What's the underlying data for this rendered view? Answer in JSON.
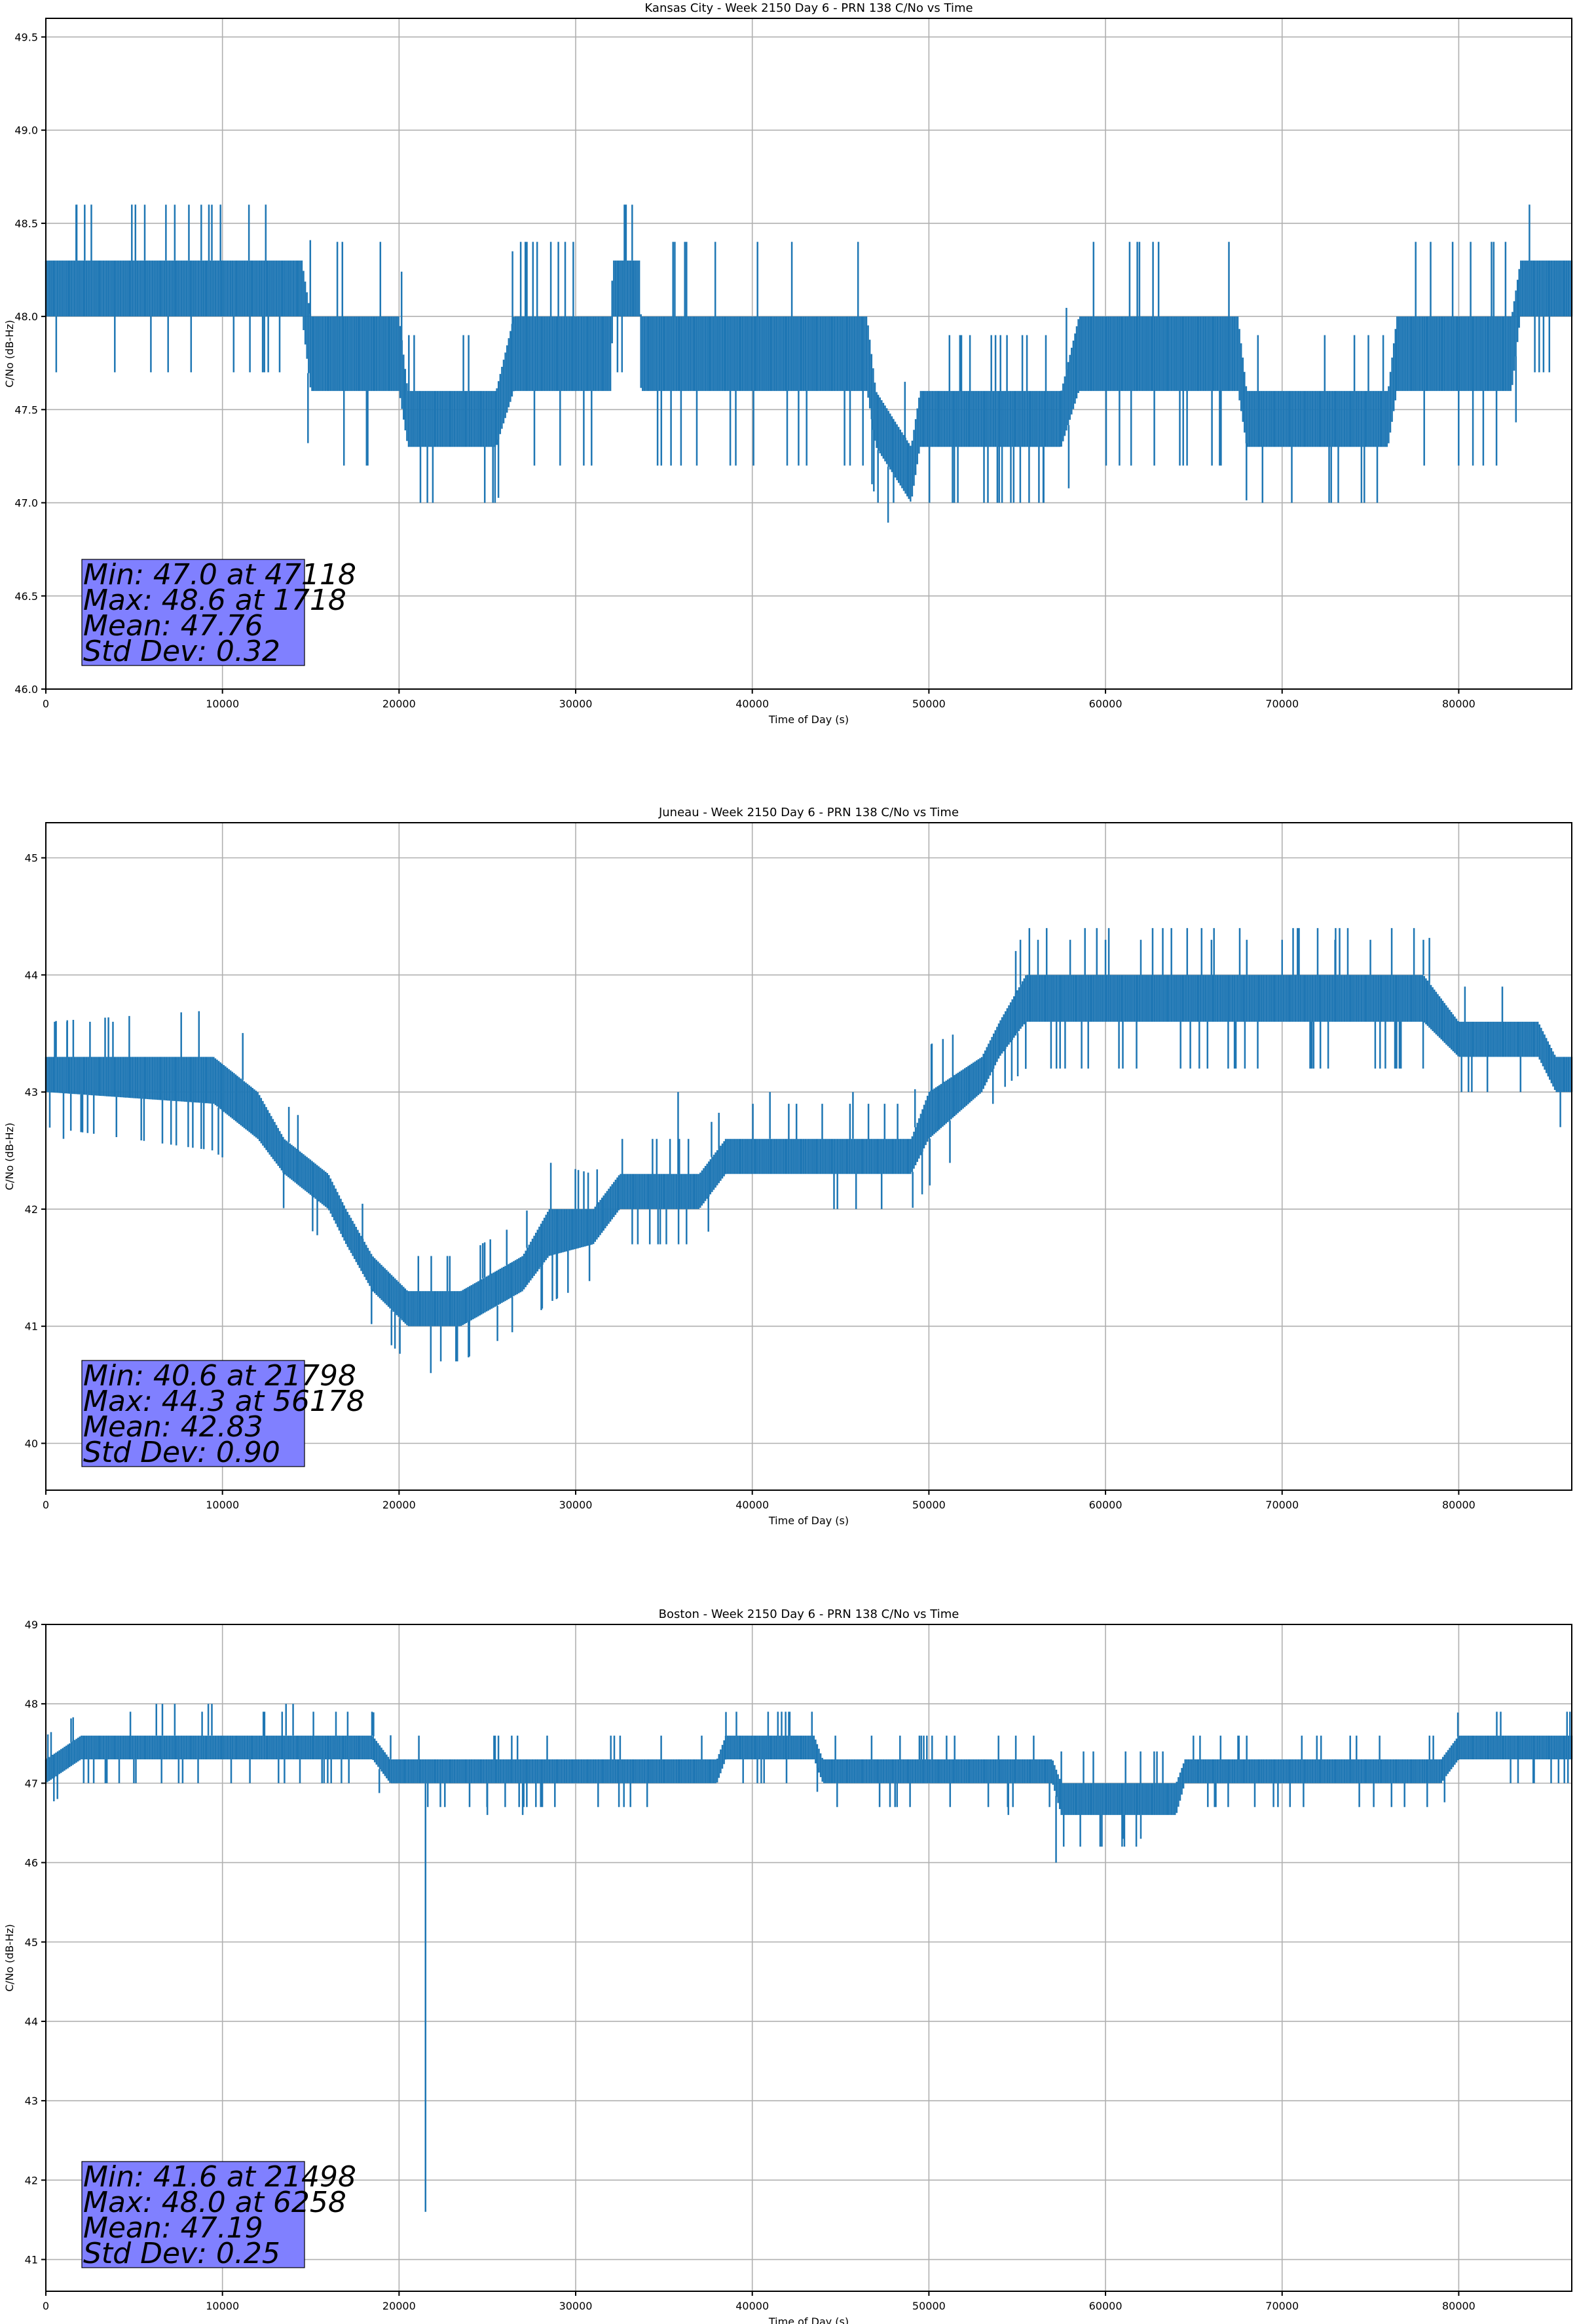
{
  "chart_data": [
    {
      "type": "line",
      "title": "Kansas City - Week 2150 Day 6 - PRN 138 C/No vs Time",
      "xlabel": "Time of Day (s)",
      "ylabel": "C/No (dB-Hz)",
      "xlim": [
        0,
        86400
      ],
      "ylim": [
        46.0,
        49.6
      ],
      "xticks": [
        0,
        10000,
        20000,
        30000,
        40000,
        50000,
        60000,
        70000,
        80000
      ],
      "yticks": [
        46.0,
        46.5,
        47.0,
        47.5,
        48.0,
        48.5,
        49.0,
        49.5
      ],
      "ytick_decimals": 1,
      "grid": true,
      "series": [
        {
          "name": "C/No",
          "color": "#1f77b4",
          "band_points": [
            {
              "x": 0,
              "low": 48.0,
              "high": 48.3
            },
            {
              "x": 14500,
              "low": 48.0,
              "high": 48.3
            },
            {
              "x": 15000,
              "low": 47.6,
              "high": 48.0
            },
            {
              "x": 20000,
              "low": 47.6,
              "high": 48.0
            },
            {
              "x": 20500,
              "low": 47.3,
              "high": 47.6
            },
            {
              "x": 25500,
              "low": 47.3,
              "high": 47.6
            },
            {
              "x": 26500,
              "low": 47.6,
              "high": 48.0
            },
            {
              "x": 32000,
              "low": 47.6,
              "high": 48.0
            },
            {
              "x": 32100,
              "low": 48.0,
              "high": 48.3
            },
            {
              "x": 33600,
              "low": 48.0,
              "high": 48.3
            },
            {
              "x": 33700,
              "low": 47.6,
              "high": 48.0
            },
            {
              "x": 46500,
              "low": 47.6,
              "high": 48.0
            },
            {
              "x": 47000,
              "low": 47.3,
              "high": 47.6
            },
            {
              "x": 49000,
              "low": 47.0,
              "high": 47.3
            },
            {
              "x": 49500,
              "low": 47.3,
              "high": 47.6
            },
            {
              "x": 57500,
              "low": 47.3,
              "high": 47.6
            },
            {
              "x": 58500,
              "low": 47.6,
              "high": 48.0
            },
            {
              "x": 67500,
              "low": 47.6,
              "high": 48.0
            },
            {
              "x": 68000,
              "low": 47.3,
              "high": 47.6
            },
            {
              "x": 76000,
              "low": 47.3,
              "high": 47.6
            },
            {
              "x": 76500,
              "low": 47.6,
              "high": 48.0
            },
            {
              "x": 83000,
              "low": 47.6,
              "high": 48.0
            },
            {
              "x": 83500,
              "low": 48.0,
              "high": 48.3
            },
            {
              "x": 86400,
              "low": 48.0,
              "high": 48.3
            }
          ],
          "spikes": [
            {
              "x": 1718,
              "y": 48.6
            },
            {
              "x": 2200,
              "y": 48.6
            },
            {
              "x": 5600,
              "y": 48.6
            },
            {
              "x": 6800,
              "y": 48.6
            },
            {
              "x": 7300,
              "y": 48.6
            },
            {
              "x": 8100,
              "y": 48.6
            },
            {
              "x": 8800,
              "y": 48.6
            },
            {
              "x": 9400,
              "y": 48.6
            },
            {
              "x": 11500,
              "y": 48.6
            },
            {
              "x": 33200,
              "y": 48.6
            },
            {
              "x": 47118,
              "y": 47.0
            },
            {
              "x": 48000,
              "y": 47.0
            },
            {
              "x": 54800,
              "y": 47.0
            },
            {
              "x": 56500,
              "y": 47.0
            }
          ]
        }
      ],
      "stats": [
        "Min: 47.0 at 47118",
        "Max: 48.6 at 1718",
        "Mean: 47.76",
        "Std Dev: 0.32"
      ]
    },
    {
      "type": "line",
      "title": "Juneau - Week 2150 Day 6 - PRN 138 C/No vs Time",
      "xlabel": "Time of Day (s)",
      "ylabel": "C/No (dB-Hz)",
      "xlim": [
        0,
        86400
      ],
      "ylim": [
        39.6,
        45.3
      ],
      "xticks": [
        0,
        10000,
        20000,
        30000,
        40000,
        50000,
        60000,
        70000,
        80000
      ],
      "yticks": [
        40,
        41,
        42,
        43,
        44,
        45
      ],
      "ytick_decimals": 0,
      "grid": true,
      "series": [
        {
          "name": "C/No",
          "color": "#1f77b4",
          "band_points": [
            {
              "x": 0,
              "low": 43.0,
              "high": 43.3
            },
            {
              "x": 9500,
              "low": 42.9,
              "high": 43.3
            },
            {
              "x": 12000,
              "low": 42.6,
              "high": 43.0
            },
            {
              "x": 13500,
              "low": 42.3,
              "high": 42.6
            },
            {
              "x": 16000,
              "low": 42.0,
              "high": 42.3
            },
            {
              "x": 17000,
              "low": 41.7,
              "high": 42.0
            },
            {
              "x": 18500,
              "low": 41.3,
              "high": 41.6
            },
            {
              "x": 20500,
              "low": 41.0,
              "high": 41.3
            },
            {
              "x": 23500,
              "low": 41.0,
              "high": 41.3
            },
            {
              "x": 27000,
              "low": 41.3,
              "high": 41.6
            },
            {
              "x": 28500,
              "low": 41.6,
              "high": 42.0
            },
            {
              "x": 31000,
              "low": 41.7,
              "high": 42.0
            },
            {
              "x": 32500,
              "low": 42.0,
              "high": 42.3
            },
            {
              "x": 37000,
              "low": 42.0,
              "high": 42.3
            },
            {
              "x": 38500,
              "low": 42.3,
              "high": 42.6
            },
            {
              "x": 49000,
              "low": 42.3,
              "high": 42.6
            },
            {
              "x": 50000,
              "low": 42.6,
              "high": 43.0
            },
            {
              "x": 53000,
              "low": 43.0,
              "high": 43.3
            },
            {
              "x": 54000,
              "low": 43.3,
              "high": 43.6
            },
            {
              "x": 55500,
              "low": 43.6,
              "high": 44.0
            },
            {
              "x": 70000,
              "low": 43.6,
              "high": 44.0
            },
            {
              "x": 78000,
              "low": 43.6,
              "high": 44.0
            },
            {
              "x": 80000,
              "low": 43.3,
              "high": 43.6
            },
            {
              "x": 84500,
              "low": 43.3,
              "high": 43.6
            },
            {
              "x": 85500,
              "low": 43.0,
              "high": 43.3
            },
            {
              "x": 86400,
              "low": 43.0,
              "high": 43.3
            }
          ],
          "spikes": [
            {
              "x": 500,
              "y": 43.6
            },
            {
              "x": 1200,
              "y": 43.6
            },
            {
              "x": 2500,
              "y": 43.6
            },
            {
              "x": 3800,
              "y": 43.6
            },
            {
              "x": 1000,
              "y": 42.6
            },
            {
              "x": 21798,
              "y": 40.6
            },
            {
              "x": 35800,
              "y": 43.0
            },
            {
              "x": 41000,
              "y": 43.0
            },
            {
              "x": 45700,
              "y": 43.0
            },
            {
              "x": 56178,
              "y": 44.3
            },
            {
              "x": 58000,
              "y": 44.3
            },
            {
              "x": 60000,
              "y": 44.3
            },
            {
              "x": 62000,
              "y": 44.3
            },
            {
              "x": 66000,
              "y": 44.3
            },
            {
              "x": 68000,
              "y": 44.3
            },
            {
              "x": 70000,
              "y": 44.3
            },
            {
              "x": 73000,
              "y": 44.3
            },
            {
              "x": 75000,
              "y": 44.3
            },
            {
              "x": 78000,
              "y": 44.3
            }
          ]
        }
      ],
      "stats": [
        "Min: 40.6 at 21798",
        "Max: 44.3 at 56178",
        "Mean: 42.83",
        "Std Dev: 0.90"
      ]
    },
    {
      "type": "line",
      "title": "Boston - Week 2150 Day 6 - PRN 138 C/No vs Time",
      "xlabel": "Time of Day (s)",
      "ylabel": "C/No (dB-Hz)",
      "xlim": [
        0,
        86400
      ],
      "ylim": [
        40.6,
        49.0
      ],
      "xticks": [
        0,
        10000,
        20000,
        30000,
        40000,
        50000,
        60000,
        70000,
        80000
      ],
      "yticks": [
        41,
        42,
        43,
        44,
        45,
        46,
        47,
        48,
        49
      ],
      "ytick_decimals": 0,
      "grid": true,
      "series": [
        {
          "name": "C/No",
          "color": "#1f77b4",
          "band_points": [
            {
              "x": 0,
              "low": 47.0,
              "high": 47.3
            },
            {
              "x": 2000,
              "low": 47.3,
              "high": 47.6
            },
            {
              "x": 18500,
              "low": 47.3,
              "high": 47.6
            },
            {
              "x": 19500,
              "low": 47.0,
              "high": 47.3
            },
            {
              "x": 38000,
              "low": 47.0,
              "high": 47.3
            },
            {
              "x": 38500,
              "low": 47.3,
              "high": 47.6
            },
            {
              "x": 43500,
              "low": 47.3,
              "high": 47.6
            },
            {
              "x": 44000,
              "low": 47.0,
              "high": 47.3
            },
            {
              "x": 57000,
              "low": 47.0,
              "high": 47.3
            },
            {
              "x": 57500,
              "low": 46.6,
              "high": 47.0
            },
            {
              "x": 64000,
              "low": 46.6,
              "high": 47.0
            },
            {
              "x": 64500,
              "low": 47.0,
              "high": 47.3
            },
            {
              "x": 79000,
              "low": 47.0,
              "high": 47.3
            },
            {
              "x": 80000,
              "low": 47.3,
              "high": 47.6
            },
            {
              "x": 86400,
              "low": 47.3,
              "high": 47.6
            }
          ],
          "spikes": [
            {
              "x": 6258,
              "y": 48.0
            },
            {
              "x": 6600,
              "y": 48.0
            },
            {
              "x": 7300,
              "y": 48.0
            },
            {
              "x": 9200,
              "y": 48.0
            },
            {
              "x": 9400,
              "y": 48.0
            },
            {
              "x": 13600,
              "y": 48.0
            },
            {
              "x": 14000,
              "y": 48.0
            },
            {
              "x": 21498,
              "y": 41.6
            },
            {
              "x": 25000,
              "y": 46.6
            },
            {
              "x": 27000,
              "y": 46.6
            },
            {
              "x": 54500,
              "y": 46.6
            },
            {
              "x": 57200,
              "y": 46.0
            },
            {
              "x": 61000,
              "y": 46.3
            },
            {
              "x": 62000,
              "y": 46.3
            }
          ]
        }
      ],
      "stats": [
        "Min: 41.6 at 21498",
        "Max: 48.0 at 6258",
        "Mean: 47.19",
        "Std Dev: 0.25"
      ]
    }
  ]
}
